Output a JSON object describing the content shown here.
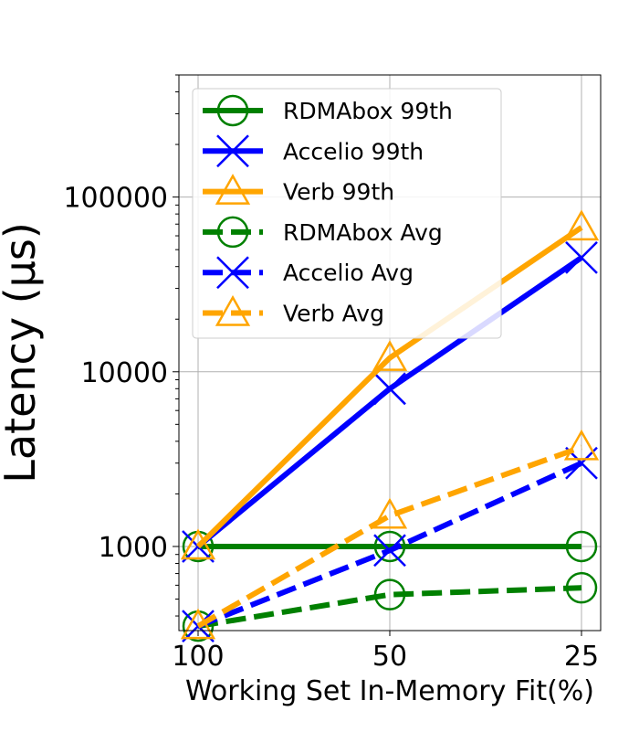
{
  "chart_data": {
    "type": "line",
    "categories": [
      "100",
      "50",
      "25"
    ],
    "xlabel": "Working Set In-Memory Fit(%)",
    "ylabel": "Latency (μs)",
    "yscale": "log",
    "ylim": [
      330,
      500000
    ],
    "yticks": [
      1000,
      10000,
      100000
    ],
    "ytick_labels": [
      "1000",
      "10000",
      "100000"
    ],
    "grid": true,
    "legend_position": "upper-left",
    "series": [
      {
        "name": "RDMAbox 99th",
        "color": "#008000",
        "dash": "solid",
        "marker": "circle",
        "values": [
          1000,
          1000,
          1000
        ]
      },
      {
        "name": "Accelio 99th",
        "color": "#0000ff",
        "dash": "solid",
        "marker": "x",
        "values": [
          1000,
          8000,
          45000
        ]
      },
      {
        "name": "Verb 99th",
        "color": "#ffa500",
        "dash": "solid",
        "marker": "triangle",
        "values": [
          1000,
          12000,
          67000
        ]
      },
      {
        "name": "RDMAbox Avg",
        "color": "#008000",
        "dash": "dashed",
        "marker": "circle",
        "values": [
          350,
          530,
          580
        ]
      },
      {
        "name": "Accelio Avg",
        "color": "#0000ff",
        "dash": "dashed",
        "marker": "x",
        "values": [
          350,
          950,
          3000
        ]
      },
      {
        "name": "Verb Avg",
        "color": "#ffa500",
        "dash": "dashed",
        "marker": "triangle",
        "values": [
          350,
          1500,
          3700
        ]
      }
    ]
  }
}
